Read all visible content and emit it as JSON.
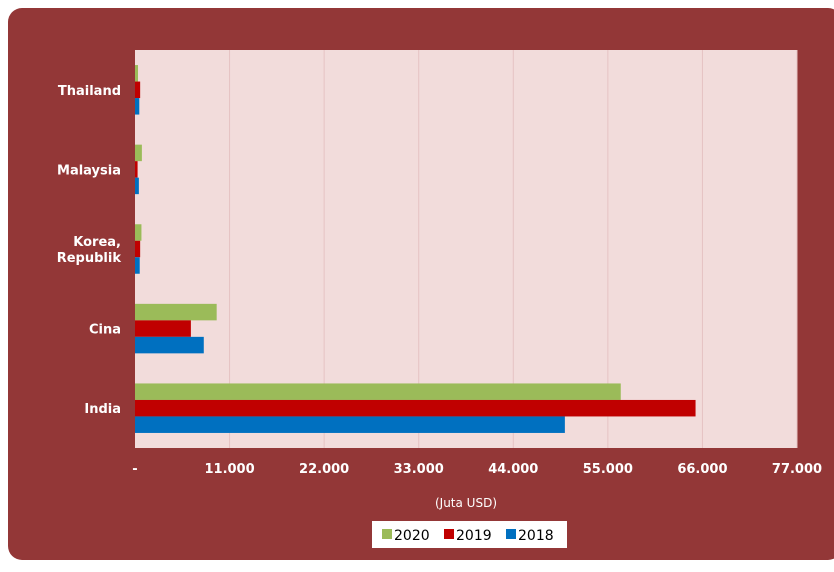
{
  "chart_data": {
    "type": "bar",
    "orientation": "horizontal",
    "title": "",
    "xlabel": "(Juta USD)",
    "ylabel": "",
    "categories": [
      [
        "Thailand"
      ],
      [
        "Malaysia"
      ],
      [
        "Korea,",
        "Republik"
      ],
      [
        "Cina"
      ],
      [
        "India"
      ]
    ],
    "xlim": [
      0,
      77000
    ],
    "x_ticks": [
      0,
      11000,
      22000,
      33000,
      44000,
      55000,
      66000,
      77000
    ],
    "x_tick_labels": [
      "-",
      "11.000",
      "22.000",
      "33.000",
      "44.000",
      "55.000",
      "66.000",
      "77.000"
    ],
    "series": [
      {
        "name": "2020",
        "color": "#9bbb59",
        "values": [
          350,
          800,
          750,
          9500,
          56500
        ]
      },
      {
        "name": "2019",
        "color": "#c00000",
        "values": [
          600,
          300,
          600,
          6500,
          65200
        ]
      },
      {
        "name": "2018",
        "color": "#0070c0",
        "values": [
          500,
          450,
          550,
          8000,
          50000
        ]
      }
    ],
    "grid": "vertical",
    "legend_position": "bottom"
  },
  "colors": {
    "card_background": "#933737",
    "plot_background": "#f2dcdb",
    "gridline": "#e6c3c3"
  }
}
